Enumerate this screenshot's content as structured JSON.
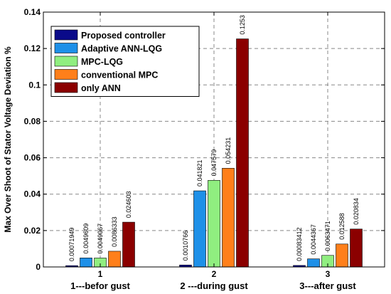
{
  "chart_data": {
    "type": "bar",
    "ylabel": "Max Over Shoot of Stator Voltage Deviation %",
    "ylim": [
      0,
      0.14
    ],
    "yticks": [
      "0",
      "0.02",
      "0.04",
      "0.06",
      "0.08",
      "0.1",
      "0.12",
      "0.14"
    ],
    "grid": true,
    "legend_position": "top-left",
    "categories": [
      "1",
      "2",
      "3"
    ],
    "category_captions": [
      "1---befor gust",
      "2 ---during gust",
      "3---after gust"
    ],
    "series": [
      {
        "name": "Proposed controller",
        "color": "#0a0a8a",
        "values": [
          0.00071949,
          0.0010766,
          0.00083412
        ],
        "labels": [
          "0.00071949",
          "0.0010766",
          "0.00083412"
        ]
      },
      {
        "name": "Adaptive ANN-LQG",
        "color": "#1e90e8",
        "values": [
          0.0049609,
          0.041821,
          0.0044367
        ],
        "labels": [
          "0.0049609",
          "0.041821",
          "0.0044367"
        ]
      },
      {
        "name": " MPC-LQG",
        "color": "#90ee80",
        "values": [
          0.0049067,
          0.047579,
          0.0063471
        ],
        "labels": [
          "0.0049067",
          "0.047579",
          "0.0063471"
        ]
      },
      {
        "name": "conventional MPC",
        "color": "#ff7f1a",
        "values": [
          0.0086333,
          0.054231,
          0.012588
        ],
        "labels": [
          "0.0086333",
          "0.054231",
          "0.012588"
        ]
      },
      {
        "name": "only ANN",
        "color": "#8b0000",
        "values": [
          0.024603,
          0.1253,
          0.020834
        ],
        "labels": [
          "0.024603",
          "0.1253",
          "0.020834"
        ]
      }
    ]
  }
}
